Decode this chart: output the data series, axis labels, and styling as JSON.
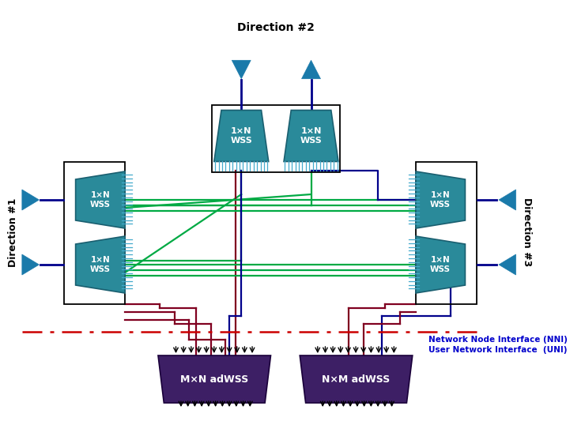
{
  "bg_color": "#ffffff",
  "wss_color": "#2a8a9a",
  "wss_dark": "#1a5f70",
  "adwss_color": "#3d1f65",
  "teal_comb": "#44aacc",
  "green": "#00aa44",
  "dark_blue": "#00008b",
  "dark_red": "#800020",
  "arr_blue": "#1a7aaa",
  "dash_red": "#cc0000",
  "black": "#000000",
  "label_blue": "#0000cc",
  "dir2_label": "Direction #2",
  "dir1_label": "Direction #1",
  "dir3_label": "Direction #3",
  "nni_label": "Network Node Interface (NNI)",
  "uni_label": "User Network Interface  (UNI)"
}
